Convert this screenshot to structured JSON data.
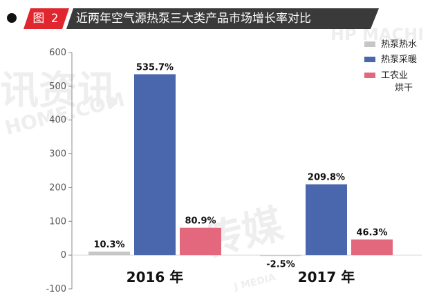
{
  "header": {
    "figure_label": "图 2",
    "title": "近两年空气源热泵三大类产品市场增长率对比"
  },
  "watermarks": {
    "left_text": "讯资讯",
    "left_sub": "HOME.COM",
    "center_text": "传媒",
    "center_sub": "J MEDIA",
    "corner_text": "HP MACHI"
  },
  "colors": {
    "water": "#c6c6c6",
    "heating": "#4a67ad",
    "drying": "#e3687d",
    "accent": "#e0262f"
  },
  "chart_data": {
    "type": "bar",
    "title": "近两年空气源热泵三大类产品市场增长率对比",
    "categories": [
      "2016 年",
      "2017 年"
    ],
    "series": [
      {
        "name": "热泵热水",
        "values": [
          10.3,
          -2.5
        ],
        "labels": [
          "10.3%",
          "-2.5%"
        ],
        "color": "#c6c6c6"
      },
      {
        "name": "热泵采暖",
        "values": [
          535.7,
          209.8
        ],
        "labels": [
          "535.7%",
          "209.8%"
        ],
        "color": "#4a67ad"
      },
      {
        "name": "工农业烘干",
        "values": [
          80.9,
          46.3
        ],
        "labels": [
          "80.9%",
          "46.3%"
        ],
        "color": "#e3687d"
      }
    ],
    "ylim": [
      -100,
      600
    ],
    "yticks": [
      -100,
      0,
      100,
      200,
      300,
      400,
      500,
      600
    ],
    "xlabel": "",
    "ylabel": "",
    "grid": false,
    "legend": {
      "position": "top-right",
      "entries": [
        "热泵热水",
        "热泵采暖",
        "工农业\n烘干"
      ]
    }
  }
}
